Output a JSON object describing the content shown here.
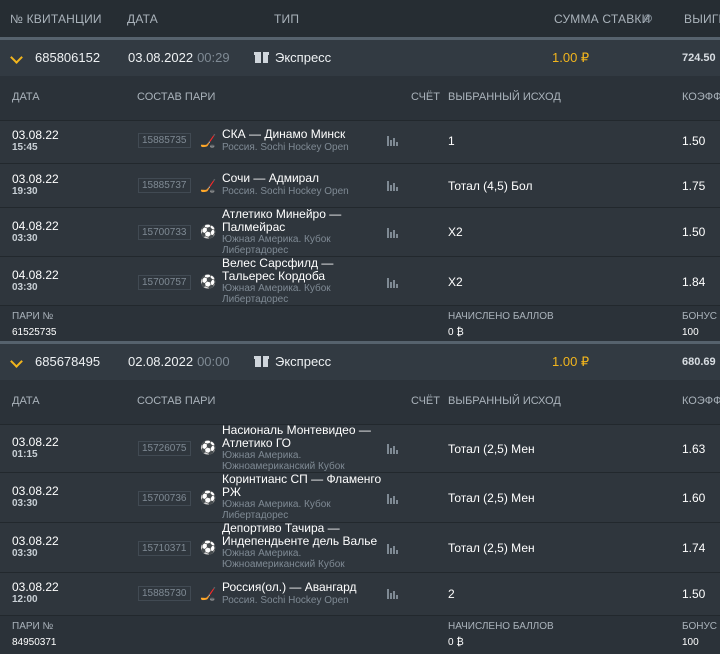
{
  "header": {
    "col_ticket": "№ КВИТАНЦИИ",
    "col_date": "ДАТА",
    "col_type": "ТИП",
    "col_stake": "СУММА СТАВКИ",
    "col_win": "ВЫИГР"
  },
  "row_headers": {
    "date": "ДАТА",
    "pairs": "СОСТАВ ПАРИ",
    "score": "СЧЁТ",
    "outcome": "ВЫБРАННЫЙ ИСХОД",
    "coef": "КОЭФФ"
  },
  "footer_labels": {
    "bet_no": "ПАРИ №",
    "points": "НАЧИСЛЕНО БАЛЛОВ",
    "bonus": "БОНУС"
  },
  "tickets": [
    {
      "number": "685806152",
      "date": "03.08.2022",
      "time": "00:29",
      "type": "Экспресс",
      "stake": "1.00 ₽",
      "win": "724.50",
      "bet_no": "61525735",
      "points": "0 ₿",
      "bonus": "100",
      "events": [
        {
          "date": "03.08.22",
          "time": "15:45",
          "event_id": "15885735",
          "sport_icon": "hockey-icon",
          "teams": "СКА — Динамо Минск",
          "league": "Россия. Sochi Hockey Open",
          "outcome": "1",
          "coef": "1.50"
        },
        {
          "date": "03.08.22",
          "time": "19:30",
          "event_id": "15885737",
          "sport_icon": "hockey-icon",
          "teams": "Сочи — Адмирал",
          "league": "Россия. Sochi Hockey Open",
          "outcome": "Тотал (4,5) Бол",
          "coef": "1.75"
        },
        {
          "date": "04.08.22",
          "time": "03:30",
          "event_id": "15700733",
          "sport_icon": "soccer-ball-icon",
          "teams": "Атлетико Минейро — Палмейрас",
          "league": "Южная Америка. Кубок Либертадорес",
          "outcome": "X2",
          "coef": "1.50"
        },
        {
          "date": "04.08.22",
          "time": "03:30",
          "event_id": "15700757",
          "sport_icon": "soccer-ball-icon",
          "teams": "Велес Сарсфилд — Тальерес Кордоба",
          "league": "Южная Америка. Кубок Либертадорес",
          "outcome": "X2",
          "coef": "1.84"
        }
      ]
    },
    {
      "number": "685678495",
      "date": "02.08.2022",
      "time": "00:00",
      "type": "Экспресс",
      "stake": "1.00 ₽",
      "win": "680.69",
      "bet_no": "84950371",
      "points": "0 ₿",
      "bonus": "100",
      "events": [
        {
          "date": "03.08.22",
          "time": "01:15",
          "event_id": "15726075",
          "sport_icon": "soccer-ball-icon",
          "teams": "Насиональ Монтевидео — Атлетико ГО",
          "league": "Южная Америка. Южноамериканский Кубок",
          "outcome": "Тотал (2,5) Мен",
          "coef": "1.63"
        },
        {
          "date": "03.08.22",
          "time": "03:30",
          "event_id": "15700736",
          "sport_icon": "soccer-ball-icon",
          "teams": "Коринтианс СП — Фламенго РЖ",
          "league": "Южная Америка. Кубок Либертадорес",
          "outcome": "Тотал (2,5) Мен",
          "coef": "1.60"
        },
        {
          "date": "03.08.22",
          "time": "03:30",
          "event_id": "15710371",
          "sport_icon": "soccer-ball-icon",
          "teams": "Депортиво Тачира — Индепендьенте дель Валье",
          "league": "Южная Америка. Южноамериканский Кубок",
          "outcome": "Тотал (2,5) Мен",
          "coef": "1.74"
        },
        {
          "date": "03.08.22",
          "time": "12:00",
          "event_id": "15885730",
          "sport_icon": "hockey-icon",
          "teams": "Россия(ол.) — Авангард",
          "league": "Россия. Sochi Hockey Open",
          "outcome": "2",
          "coef": "1.50"
        }
      ]
    }
  ],
  "colors": {
    "accent": "#f2b51d",
    "background": "#2a3138",
    "panel": "#323a42"
  }
}
